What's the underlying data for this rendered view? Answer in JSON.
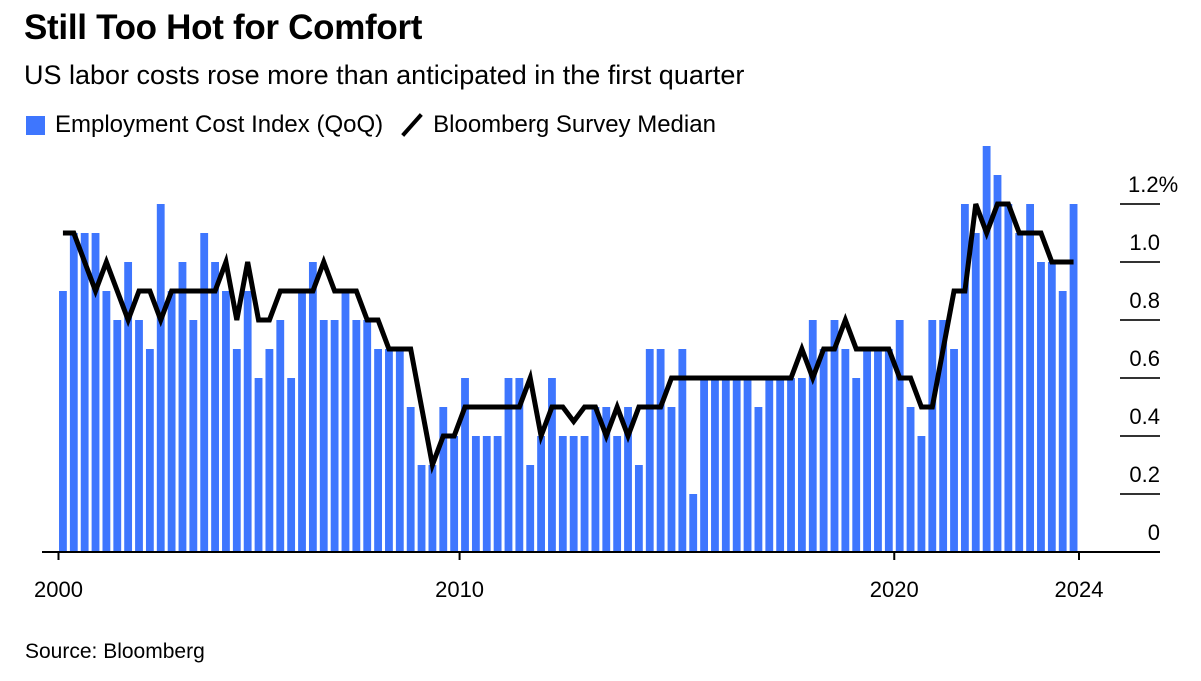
{
  "title": "Still Too Hot for Comfort",
  "subtitle": "US labor costs rose more than anticipated in the first quarter",
  "source": "Source: Bloomberg",
  "colors": {
    "bar": "#3e76fe",
    "line": "#000000",
    "axis": "#000000",
    "tick": "#333333"
  },
  "legend": [
    {
      "label": "Employment Cost Index (QoQ)",
      "icon": "square-swatch-icon"
    },
    {
      "label": "Bloomberg Survey Median",
      "icon": "line-slash-icon"
    }
  ],
  "chart_data": {
    "type": "bar",
    "title": "Still Too Hot for Comfort",
    "subtitle": "US labor costs rose more than anticipated in the first quarter",
    "xlabel": "",
    "ylabel": "",
    "ylim": [
      0,
      1.4
    ],
    "y_ticks": [
      0,
      0.2,
      0.4,
      0.6,
      0.8,
      1.0,
      1.2
    ],
    "y_tick_labels": [
      "0",
      "0.2",
      "0.4",
      "0.6",
      "0.8",
      "1.0",
      "1.2%"
    ],
    "y_axis_side": "right",
    "x_tick_labels": [
      "2000",
      "2010",
      "2020",
      "2024"
    ],
    "x_tick_quarter_index": [
      0,
      37,
      77,
      93
    ],
    "grid": false,
    "legend_position": "top-left",
    "start_quarter": "2000 Q4",
    "end_quarter": "2024 Q1",
    "series": [
      {
        "name": "Employment Cost Index (QoQ)",
        "type": "bar",
        "values": [
          0.9,
          1.1,
          1.1,
          1.1,
          0.9,
          0.8,
          1.0,
          0.8,
          0.7,
          1.2,
          0.9,
          1.0,
          0.8,
          1.1,
          1.0,
          0.9,
          0.7,
          0.9,
          0.6,
          0.7,
          0.8,
          0.6,
          0.9,
          1.0,
          0.8,
          0.8,
          0.9,
          0.8,
          0.8,
          0.7,
          0.7,
          0.7,
          0.5,
          0.3,
          0.3,
          0.5,
          0.4,
          0.6,
          0.4,
          0.4,
          0.4,
          0.6,
          0.6,
          0.3,
          0.4,
          0.6,
          0.4,
          0.4,
          0.4,
          0.5,
          0.5,
          0.4,
          0.5,
          0.3,
          0.7,
          0.7,
          0.5,
          0.7,
          0.2,
          0.6,
          0.6,
          0.6,
          0.6,
          0.6,
          0.5,
          0.6,
          0.6,
          0.6,
          0.6,
          0.8,
          0.7,
          0.8,
          0.7,
          0.6,
          0.7,
          0.7,
          0.7,
          0.8,
          0.5,
          0.4,
          0.8,
          0.8,
          0.7,
          1.2,
          1.1,
          1.4,
          1.3,
          1.2,
          1.1,
          1.2,
          1.0,
          1.0,
          0.9,
          1.2
        ]
      },
      {
        "name": "Bloomberg Survey Median",
        "type": "line",
        "values": [
          1.1,
          1.1,
          1.0,
          0.9,
          1.0,
          0.9,
          0.8,
          0.9,
          0.9,
          0.8,
          0.9,
          0.9,
          0.9,
          0.9,
          0.9,
          1.0,
          0.8,
          1.0,
          0.8,
          0.8,
          0.9,
          0.9,
          0.9,
          0.9,
          1.0,
          0.9,
          0.9,
          0.9,
          0.8,
          0.8,
          0.7,
          0.7,
          0.7,
          0.5,
          0.3,
          0.4,
          0.4,
          0.5,
          0.5,
          0.5,
          0.5,
          0.5,
          0.5,
          0.6,
          0.4,
          0.5,
          0.5,
          0.45,
          0.5,
          0.5,
          0.4,
          0.5,
          0.4,
          0.5,
          0.5,
          0.5,
          0.6,
          0.6,
          0.6,
          0.6,
          0.6,
          0.6,
          0.6,
          0.6,
          0.6,
          0.6,
          0.6,
          0.6,
          0.7,
          0.6,
          0.7,
          0.7,
          0.8,
          0.7,
          0.7,
          0.7,
          0.7,
          0.6,
          0.6,
          0.5,
          0.5,
          0.7,
          0.9,
          0.9,
          1.2,
          1.1,
          1.2,
          1.2,
          1.1,
          1.1,
          1.1,
          1.0,
          1.0,
          1.0
        ]
      }
    ]
  }
}
